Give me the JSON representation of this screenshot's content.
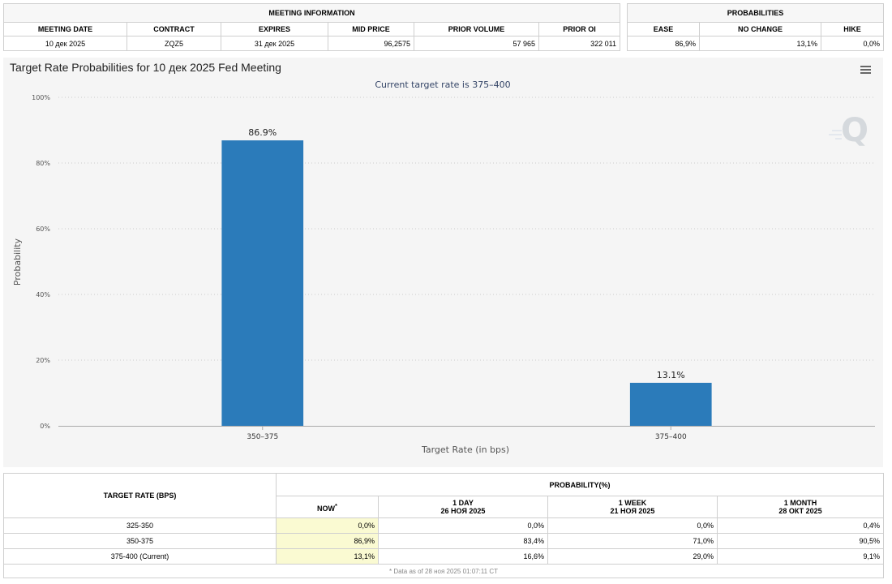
{
  "meeting_info": {
    "group_title": "MEETING INFORMATION",
    "headers": [
      "MEETING DATE",
      "CONTRACT",
      "EXPIRES",
      "MID PRICE",
      "PRIOR VOLUME",
      "PRIOR OI"
    ],
    "row": [
      "10 дек 2025",
      "ZQZ5",
      "31 дек 2025",
      "96,2575",
      "57 965",
      "322 011"
    ]
  },
  "probabilities": {
    "group_title": "PROBABILITIES",
    "headers": [
      "EASE",
      "NO CHANGE",
      "HIKE"
    ],
    "row": [
      "86,9%",
      "13,1%",
      "0,0%"
    ]
  },
  "chart_data": {
    "type": "bar",
    "title": "Target Rate Probabilities for 10 дек 2025 Fed Meeting",
    "subtitle": "Current target rate is 375–400",
    "xlabel": "Target Rate (in bps)",
    "ylabel": "Probability",
    "categories": [
      "350–375",
      "375–400"
    ],
    "values": [
      86.9,
      13.1
    ],
    "data_labels": [
      "86.9%",
      "13.1%"
    ],
    "ylim": [
      0,
      100
    ],
    "yticks": [
      0,
      20,
      40,
      60,
      80,
      100
    ],
    "ytick_labels": [
      "0%",
      "20%",
      "40%",
      "60%",
      "80%",
      "100%"
    ],
    "grid": true,
    "bar_color": "#2b7bba",
    "menu_icon": "hamburger-menu-icon",
    "watermark_icon": "q-logo-icon"
  },
  "history": {
    "col_target": "TARGET RATE (BPS)",
    "group_title": "PROBABILITY(%)",
    "sub_headers": [
      {
        "line1": "NOW",
        "line2": "",
        "marker": "*"
      },
      {
        "line1": "1 DAY",
        "line2": "26 НОЯ 2025"
      },
      {
        "line1": "1 WEEK",
        "line2": "21 НОЯ 2025"
      },
      {
        "line1": "1 MONTH",
        "line2": "28 ОКТ 2025"
      }
    ],
    "rows": [
      {
        "rate": "325-350",
        "now": "0,0%",
        "day": "0,0%",
        "week": "0,0%",
        "month": "0,4%"
      },
      {
        "rate": "350-375",
        "now": "86,9%",
        "day": "83,4%",
        "week": "71,0%",
        "month": "90,5%"
      },
      {
        "rate": "375-400 (Current)",
        "now": "13,1%",
        "day": "16,6%",
        "week": "29,0%",
        "month": "9,1%"
      }
    ],
    "footnote": "* Data as of 28 ноя 2025 01:07:11 CT"
  }
}
